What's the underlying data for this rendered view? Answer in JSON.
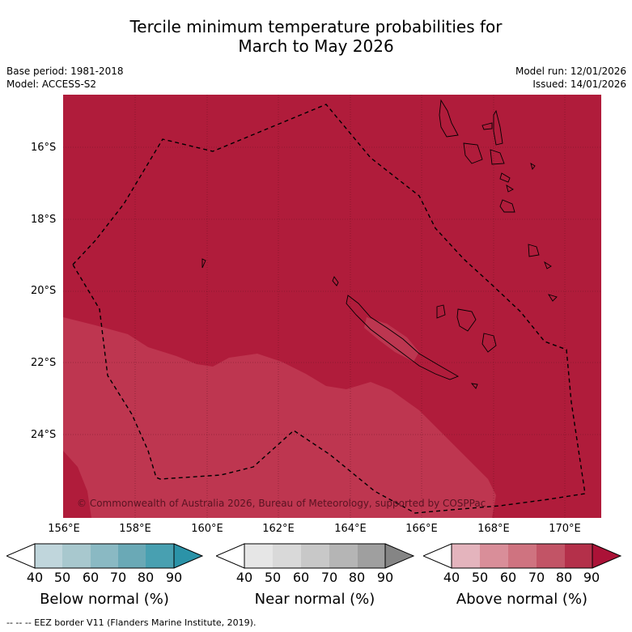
{
  "title": {
    "line1": "Tercile minimum temperature probabilities for",
    "line2": "March to May 2026"
  },
  "meta": {
    "base_period": "Base period: 1981-2018",
    "model": "Model: ACCESS-S2",
    "model_run": "Model run: 12/01/2026",
    "issued": "Issued: 14/01/2026"
  },
  "map": {
    "lat_labels": [
      "16°S",
      "18°S",
      "20°S",
      "22°S",
      "24°S"
    ],
    "lon_labels": [
      "156°E",
      "158°E",
      "160°E",
      "162°E",
      "164°E",
      "166°E",
      "168°E",
      "170°E"
    ],
    "copyright": "© Commonwealth of Australia 2026, Bureau of Meteorology, supported by COSPPac",
    "colors": {
      "above_80": "#b01c3b",
      "above_70": "#be3650",
      "above_60": "#c64d63"
    }
  },
  "legends": [
    {
      "title": "Below normal (%)",
      "ticks": [
        "40",
        "50",
        "60",
        "70",
        "80",
        "90"
      ],
      "colors": [
        "#c0d6dc",
        "#a8c8ce",
        "#8ab9c3",
        "#6aa9b6",
        "#48a0b1",
        "#2b93a8"
      ]
    },
    {
      "title": "Near normal (%)",
      "ticks": [
        "40",
        "50",
        "60",
        "70",
        "80",
        "90"
      ],
      "colors": [
        "#e6e6e6",
        "#d9d9d9",
        "#c8c8c8",
        "#b5b5b5",
        "#9f9f9f",
        "#858585"
      ]
    },
    {
      "title": "Above normal (%)",
      "ticks": [
        "40",
        "50",
        "60",
        "70",
        "80",
        "90"
      ],
      "colors": [
        "#e4b4bd",
        "#d98e99",
        "#cf7380",
        "#c25466",
        "#b4304a",
        "#ab1237"
      ]
    }
  ],
  "footnote": "--  --  -- EEZ border V11 (Flanders Marine Institute, 2019)."
}
